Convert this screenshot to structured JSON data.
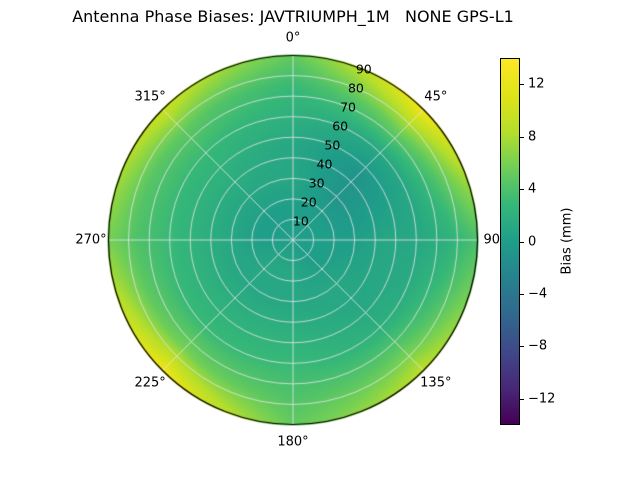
{
  "title": "Antenna Phase Biases: JAVTRIUMPH_1M   NONE GPS-L1",
  "chart_data": {
    "type": "heatmap",
    "projection": "polar",
    "title": "Antenna Phase Biases: JAVTRIUMPH_1M   NONE GPS-L1",
    "angular_ticks": [
      "0°",
      "45°",
      "90°",
      "135°",
      "180°",
      "225°",
      "270°",
      "315°"
    ],
    "angular_tick_degrees": [
      0,
      45,
      90,
      135,
      180,
      225,
      270,
      315
    ],
    "angular_direction": "clockwise-from-top",
    "radial_ticks": [
      10,
      20,
      30,
      40,
      50,
      60,
      70,
      80,
      90
    ],
    "radial_label_azimuth_deg": 22.5,
    "r_max": 90,
    "grid": true,
    "grid_azimuths_deg": [
      0,
      45,
      90,
      135,
      180,
      225,
      270,
      315
    ],
    "grid_radii": [
      0,
      15,
      30,
      45,
      60,
      75,
      90
    ],
    "values_mm": [
      [
        0,
        0,
        1,
        1,
        2,
        3,
        5
      ],
      [
        0,
        0,
        -1,
        -1,
        1,
        6,
        13
      ],
      [
        0,
        0,
        0,
        1,
        1,
        2,
        4
      ],
      [
        0,
        0,
        1,
        1,
        2,
        5,
        9
      ],
      [
        0,
        1,
        1,
        2,
        3,
        4,
        5
      ],
      [
        0,
        1,
        1,
        2,
        3,
        6,
        13
      ],
      [
        0,
        0,
        1,
        2,
        3,
        4,
        6
      ],
      [
        0,
        0,
        1,
        2,
        3,
        5,
        10
      ]
    ],
    "colorbar": {
      "label": "Bias (mm)",
      "ticks": [
        "12",
        "8",
        "4",
        "0",
        "−4",
        "−8",
        "−12"
      ],
      "tick_values": [
        12,
        8,
        4,
        0,
        -4,
        -8,
        -12
      ],
      "vmin": -14,
      "vmax": 14,
      "colormap": "viridis",
      "colormap_stops": [
        "#440154",
        "#482878",
        "#3e4989",
        "#31688e",
        "#26828e",
        "#1f9e89",
        "#35b779",
        "#6ece58",
        "#b5de2b",
        "#dfe318",
        "#fde725"
      ]
    },
    "grid_line_color": "#e6e6e6",
    "outline_color": "#000000"
  }
}
